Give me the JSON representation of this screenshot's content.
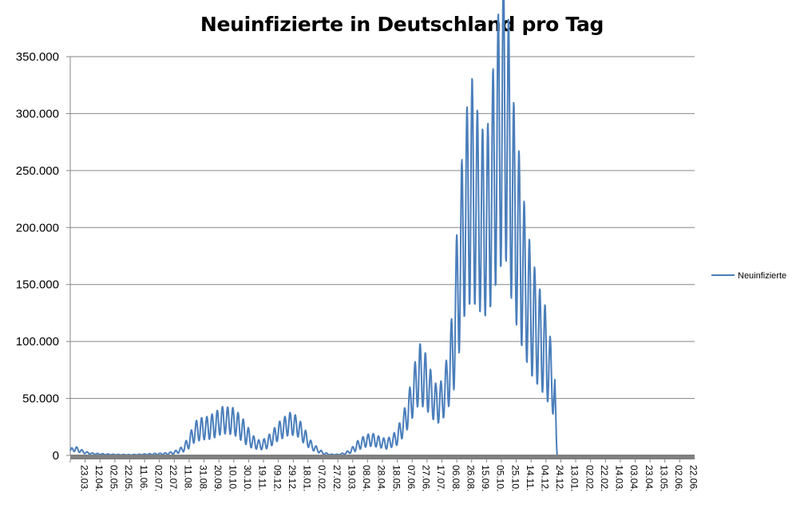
{
  "chart_data": {
    "type": "line",
    "title": "Neuinfizierte in Deutschland pro Tag",
    "xlabel": "",
    "ylabel": "",
    "ylim": [
      0,
      350000
    ],
    "yticks": [
      0,
      50000,
      100000,
      150000,
      200000,
      250000,
      300000,
      350000
    ],
    "ytick_labels": [
      "0",
      "50.000",
      "100.000",
      "150.000",
      "200.000",
      "250.000",
      "300.000",
      "350.000"
    ],
    "xtick_labels": [
      "23.03.",
      "12.04.",
      "02.05.",
      "22.05.",
      "11.06.",
      "02.07.",
      "22.07.",
      "11.08.",
      "31.08.",
      "20.09.",
      "10.10.",
      "30.10.",
      "19.11.",
      "09.12.",
      "29.12.",
      "18.01.",
      "07.02.",
      "27.02.",
      "19.03.",
      "08.04.",
      "28.04.",
      "18.05.",
      "07.06.",
      "27.06.",
      "17.07.",
      "06.08.",
      "26.08.",
      "15.09.",
      "05.10.",
      "25.10.",
      "14.11.",
      "04.12.",
      "24.12.",
      "13.01.",
      "02.02.",
      "22.02.",
      "14.03.",
      "03.04.",
      "23.04.",
      "13.05.",
      "02.06.",
      "22.06."
    ],
    "legend": {
      "position": "right",
      "entries": [
        "Neuinfizierte"
      ]
    },
    "series": [
      {
        "name": "Neuinfizierte",
        "color": "#4a7ebb",
        "x_day_index": [
          0,
          5,
          10,
          20,
          30,
          45,
          60,
          80,
          100,
          115,
          130,
          140,
          150,
          158,
          168,
          175,
          183,
          190,
          205,
          220,
          228,
          235,
          245,
          255,
          262,
          270,
          280,
          295,
          305,
          315,
          325,
          340,
          350,
          360,
          370,
          378,
          385,
          395,
          405,
          415,
          425,
          432,
          440,
          450,
          458,
          465,
          470,
          478,
          485,
          492,
          500,
          507,
          515,
          520,
          530,
          540,
          550,
          560,
          566,
          575,
          585,
          590,
          596,
          605,
          612,
          620,
          630,
          640,
          650,
          655
        ],
        "values": [
          4000,
          6000,
          5000,
          2500,
          1500,
          1000,
          700,
          500,
          900,
          1200,
          1500,
          2500,
          5000,
          10000,
          21000,
          23000,
          24000,
          25000,
          31000,
          30000,
          25000,
          20000,
          12000,
          9000,
          10000,
          14000,
          21000,
          28000,
          26000,
          17000,
          8000,
          2000,
          800,
          700,
          1800,
          4000,
          8000,
          12000,
          14000,
          12000,
          10000,
          12000,
          16000,
          30000,
          46000,
          63000,
          72000,
          65000,
          55000,
          45000,
          48000,
          63000,
          92000,
          135000,
          205000,
          235000,
          210000,
          200000,
          225000,
          270000,
          305000,
          265000,
          220000,
          180000,
          150000,
          125000,
          105000,
          90000,
          60000,
          35000
        ],
        "amplitude": [
          1500,
          2500,
          2000,
          1000,
          600,
          400,
          300,
          200,
          400,
          600,
          800,
          1200,
          2500,
          5000,
          9000,
          10000,
          10000,
          11000,
          12000,
          12000,
          11000,
          10000,
          6000,
          4000,
          5000,
          6000,
          8000,
          10000,
          9000,
          7000,
          3500,
          1000,
          300,
          300,
          800,
          2000,
          4000,
          5000,
          6000,
          5000,
          4500,
          5000,
          7000,
          12000,
          17000,
          23000,
          27000,
          25000,
          20000,
          18000,
          18000,
          24000,
          40000,
          60000,
          85000,
          100000,
          85000,
          80000,
          95000,
          115000,
          130000,
          115000,
          95000,
          80000,
          65000,
          55000,
          45000,
          40000,
          25000,
          15000
        ]
      }
    ]
  }
}
